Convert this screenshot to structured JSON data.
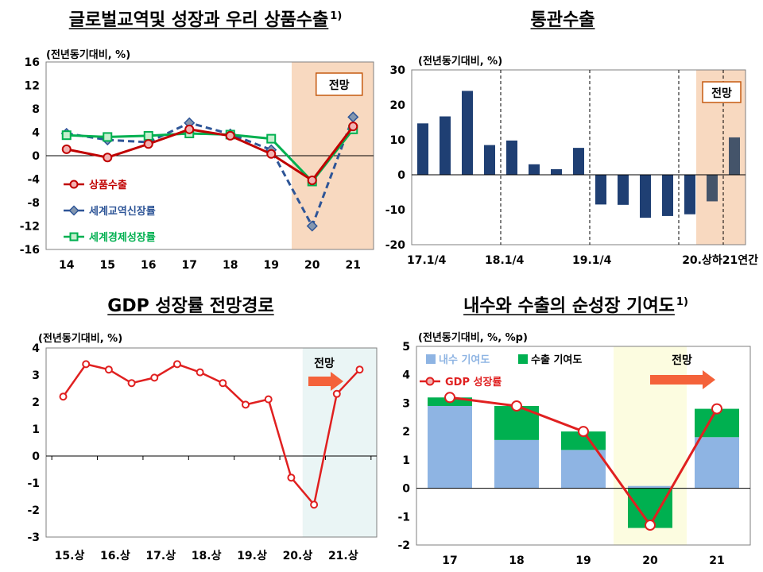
{
  "chart_data": [
    {
      "type": "line",
      "title": "글로벌교역및 성장과 우리 상품수출",
      "title_sup": "1)",
      "unit_label": "(전년동기대비, %)",
      "categories": [
        "14",
        "15",
        "16",
        "17",
        "18",
        "19",
        "20",
        "21"
      ],
      "ylim": [
        -16,
        16
      ],
      "yticks": [
        "16",
        "12",
        "8",
        "4",
        "0",
        "-4",
        "-8",
        "-12",
        "-16"
      ],
      "forecast_label": "전망",
      "series": [
        {
          "name": "상품수출",
          "values": [
            1.1,
            -0.3,
            2.0,
            4.5,
            3.4,
            0.3,
            -4.2,
            5.0
          ],
          "color": "#c00000"
        },
        {
          "name": "세계교역신장률",
          "values": [
            3.8,
            2.7,
            2.3,
            5.6,
            3.7,
            1.0,
            -12.0,
            6.6
          ],
          "color": "#2e5597"
        },
        {
          "name": "세계경제성장률",
          "values": [
            3.5,
            3.2,
            3.4,
            3.8,
            3.6,
            2.9,
            -4.4,
            4.5
          ],
          "color": "#00b050"
        }
      ],
      "forecast_color": "#f8d9c0"
    },
    {
      "type": "bar",
      "title": "통관수출",
      "unit_label": "(전년동기대비, %)",
      "values": [
        14.7,
        16.7,
        24.0,
        8.5,
        9.8,
        3.0,
        1.6,
        7.7,
        -8.5,
        -8.6,
        -12.3,
        -11.8,
        -11.3,
        -7.6,
        10.7
      ],
      "highlight_from_index": 13,
      "ylim": [
        -20,
        30
      ],
      "yticks": [
        "30",
        "20",
        "10",
        "0",
        "-10",
        "-20"
      ],
      "xtick_labels": [
        "17.1/4",
        "18.1/4",
        "19.1/4",
        "20.상하21연간"
      ],
      "forecast_label": "전망",
      "bar_color": "#1f3f73",
      "forecast_bar_color": "#44546a",
      "forecast_color": "#f8d9c0"
    },
    {
      "type": "line",
      "title": "GDP 성장률 전망경로",
      "unit_label": "(전년동기대비, %)",
      "x": [
        1,
        2,
        3,
        4,
        5,
        6,
        7,
        8,
        9,
        10,
        11,
        12,
        13,
        14
      ],
      "values": [
        2.2,
        3.4,
        3.2,
        2.7,
        2.9,
        3.4,
        3.1,
        2.7,
        1.9,
        2.1,
        -0.8,
        -1.8,
        2.3,
        3.2
      ],
      "xtick_labels": [
        "15.상",
        "16.상",
        "17.상",
        "18.상",
        "19.상",
        "20.상",
        "21.상"
      ],
      "ylim": [
        -3,
        4
      ],
      "yticks": [
        "4",
        "3",
        "2",
        "1",
        "0",
        "-1",
        "-2",
        "-3"
      ],
      "forecast_label": "전망",
      "line_color": "#e02020",
      "forecast_color": "#eaf5f5"
    },
    {
      "type": "bar",
      "title": "내수와 수출의 순성장 기여도",
      "title_sup": "1)",
      "unit_label": "(전년동기대비, %, %p)",
      "categories": [
        "17",
        "18",
        "19",
        "20",
        "21"
      ],
      "ylim": [
        -2,
        5
      ],
      "yticks": [
        "5",
        "4",
        "3",
        "2",
        "1",
        "0",
        "-1",
        "-2"
      ],
      "series": [
        {
          "name": "내수 기여도",
          "values": [
            2.9,
            1.7,
            1.35,
            0.08,
            1.8
          ],
          "color": "#8eb4e3"
        },
        {
          "name": "수출 기여도",
          "values": [
            0.3,
            1.2,
            0.65,
            -1.4,
            1.0
          ],
          "color": "#00b050"
        },
        {
          "name": "GDP 성장률",
          "values": [
            3.2,
            2.9,
            2.0,
            -1.3,
            2.8
          ],
          "color": "#e02020"
        }
      ],
      "forecast_label": "전망",
      "forecast_color": "#fcfce0"
    }
  ]
}
